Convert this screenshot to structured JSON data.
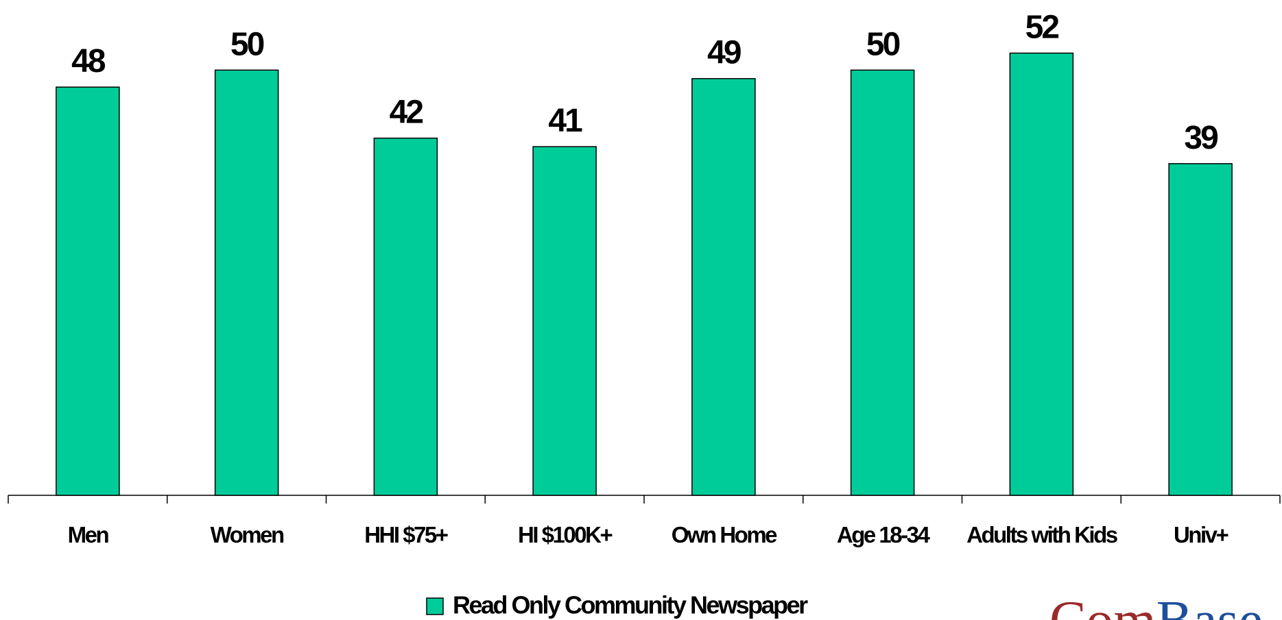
{
  "chart_data": {
    "type": "bar",
    "categories": [
      "Men",
      "Women",
      "HHI $75+",
      "HI $100K+",
      "Own Home",
      "Age 18-34",
      "Adults with Kids",
      "Univ+"
    ],
    "series": [
      {
        "name": "Read Only Community Newspaper",
        "color": "#00cc99",
        "values": [
          48,
          50,
          42,
          41,
          49,
          50,
          52,
          39
        ]
      }
    ],
    "ylim": [
      0,
      58
    ],
    "data_labels": true,
    "legend": "bottom",
    "logo": {
      "first": "Com",
      "second": "Base"
    }
  }
}
